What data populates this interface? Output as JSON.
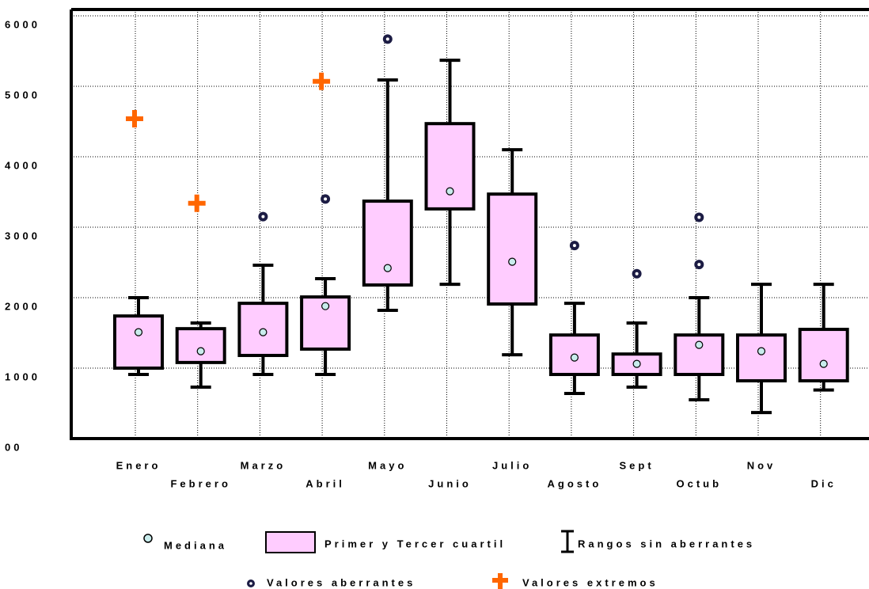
{
  "chart_data": {
    "type": "box",
    "categories": [
      "Enero",
      "Febrero",
      "Marzo",
      "Abril",
      "Mayo",
      "Junio",
      "Julio",
      "Agosto",
      "Sept",
      "Octub",
      "Nov",
      "Dic"
    ],
    "whisker_high": [
      2000,
      1640,
      2460,
      2270,
      5090,
      5370,
      4100,
      1920,
      1640,
      2000,
      2190,
      2190
    ],
    "q3": [
      1740,
      1560,
      1920,
      2010,
      3370,
      4470,
      3470,
      1470,
      1200,
      1470,
      1470,
      1550
    ],
    "median": [
      1510,
      1240,
      1510,
      1880,
      2420,
      3510,
      2510,
      1150,
      1060,
      1330,
      1240,
      1060
    ],
    "q1": [
      1000,
      1080,
      1180,
      1270,
      2180,
      3260,
      1910,
      910,
      910,
      910,
      820,
      820
    ],
    "whisker_low": [
      910,
      730,
      910,
      910,
      1820,
      2190,
      1190,
      640,
      730,
      550,
      370,
      690
    ],
    "outliers": [
      [],
      [],
      [
        3150
      ],
      [
        3400
      ],
      [
        5670
      ],
      [],
      [],
      [
        2740
      ],
      [
        2340
      ],
      [
        3140,
        2470
      ],
      [],
      []
    ],
    "extremes": [
      [
        4540
      ],
      [
        3340
      ],
      [],
      [
        5070
      ],
      [],
      [],
      [],
      [],
      [],
      [],
      [],
      []
    ],
    "ylim": [
      0,
      6000
    ],
    "yticks": [
      {
        "value": 0,
        "label": "00"
      },
      1000,
      2000,
      3000,
      4000,
      5000,
      6000
    ],
    "grid": true,
    "box_color": "#ffccff",
    "median_color": "#c8ecec",
    "outlier_color": "#1c1c44",
    "extreme_color": "#ff6600",
    "legend": {
      "median": "Mediana",
      "box": "Primer y Tercer cuartil",
      "whisker": "Rangos sin aberrantes",
      "outlier": "Valores aberrantes",
      "extreme": "Valores extremos"
    }
  }
}
